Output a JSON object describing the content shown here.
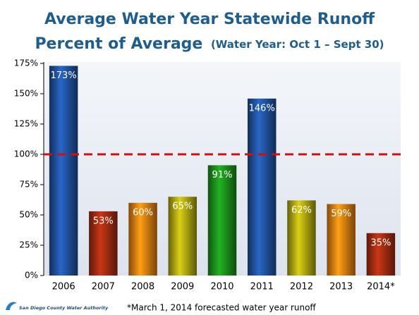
{
  "chart_data": {
    "type": "bar",
    "title": "Average Water Year Statewide Runoff",
    "subtitle": "Percent of Average",
    "subtitle_note": "(Water Year: Oct 1 – Sept 30)",
    "footnote": "*March 1, 2014 forecasted water year runoff",
    "source": "San Diego County Water Authority",
    "categories": [
      "2006",
      "2007",
      "2008",
      "2009",
      "2010",
      "2011",
      "2012",
      "2013",
      "2014*"
    ],
    "values": [
      173,
      53,
      60,
      65,
      91,
      146,
      62,
      59,
      35
    ],
    "value_labels": [
      "173%",
      "53%",
      "60%",
      "65%",
      "91%",
      "146%",
      "62%",
      "59%",
      "35%"
    ],
    "colors": [
      "#1f4f9a",
      "#9c2a10",
      "#e07a10",
      "#a8a010",
      "#1a8a1a",
      "#1f4f9a",
      "#a8a010",
      "#e07a10",
      "#9c2a10"
    ],
    "ylim": [
      0,
      175
    ],
    "yticks": [
      {
        "value": 0,
        "label": "0%"
      },
      {
        "value": 25,
        "label": "25%"
      },
      {
        "value": 50,
        "label": "50%"
      },
      {
        "value": 75,
        "label": "75%"
      },
      {
        "value": 100,
        "label": "100%"
      },
      {
        "value": 125,
        "label": "125%"
      },
      {
        "value": 150,
        "label": "150%"
      },
      {
        "value": 175,
        "label": "175%"
      }
    ],
    "reference_line": 100,
    "reference_color": "#cc1111"
  }
}
